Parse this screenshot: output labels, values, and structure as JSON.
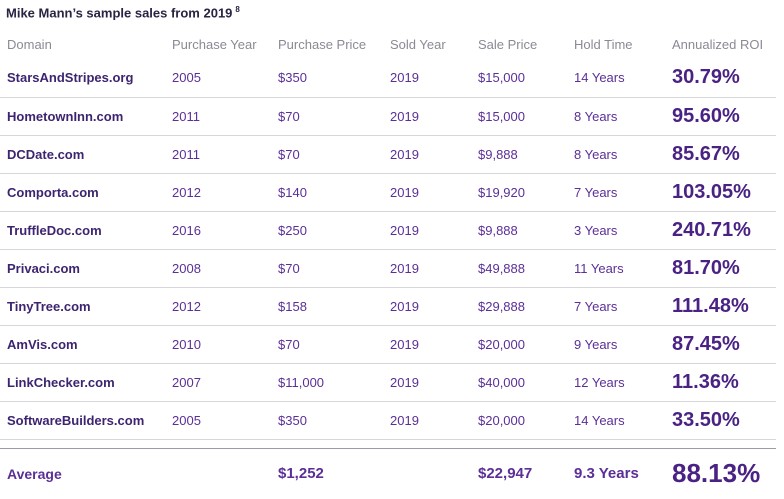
{
  "title": "Mike Mann’s sample sales from 2019",
  "footnote_marker": "8",
  "columns": [
    "Domain",
    "Purchase Year",
    "Purchase Price",
    "Sold Year",
    "Sale Price",
    "Hold Time",
    "Annualized ROI"
  ],
  "rows": [
    {
      "domain": "StarsAndStripes.org",
      "purchase_year": "2005",
      "purchase_price": "$350",
      "sold_year": "2019",
      "sale_price": "$15,000",
      "hold_time": "14 Years",
      "roi": "30.79%"
    },
    {
      "domain": "HometownInn.com",
      "purchase_year": "2011",
      "purchase_price": "$70",
      "sold_year": "2019",
      "sale_price": "$15,000",
      "hold_time": "8 Years",
      "roi": "95.60%"
    },
    {
      "domain": "DCDate.com",
      "purchase_year": "2011",
      "purchase_price": "$70",
      "sold_year": "2019",
      "sale_price": "$9,888",
      "hold_time": "8 Years",
      "roi": "85.67%"
    },
    {
      "domain": "Comporta.com",
      "purchase_year": "2012",
      "purchase_price": "$140",
      "sold_year": "2019",
      "sale_price": "$19,920",
      "hold_time": "7 Years",
      "roi": "103.05%"
    },
    {
      "domain": "TruffleDoc.com",
      "purchase_year": "2016",
      "purchase_price": "$250",
      "sold_year": "2019",
      "sale_price": "$9,888",
      "hold_time": "3 Years",
      "roi": "240.71%"
    },
    {
      "domain": "Privaci.com",
      "purchase_year": "2008",
      "purchase_price": "$70",
      "sold_year": "2019",
      "sale_price": "$49,888",
      "hold_time": "11 Years",
      "roi": "81.70%"
    },
    {
      "domain": "TinyTree.com",
      "purchase_year": "2012",
      "purchase_price": "$158",
      "sold_year": "2019",
      "sale_price": "$29,888",
      "hold_time": "7 Years",
      "roi": "111.48%"
    },
    {
      "domain": "AmVis.com",
      "purchase_year": "2010",
      "purchase_price": "$70",
      "sold_year": "2019",
      "sale_price": "$20,000",
      "hold_time": "9 Years",
      "roi": "87.45%"
    },
    {
      "domain": "LinkChecker.com",
      "purchase_year": "2007",
      "purchase_price": "$11,000",
      "sold_year": "2019",
      "sale_price": "$40,000",
      "hold_time": "12 Years",
      "roi": "11.36%"
    },
    {
      "domain": "SoftwareBuilders.com",
      "purchase_year": "2005",
      "purchase_price": "$350",
      "sold_year": "2019",
      "sale_price": "$20,000",
      "hold_time": "14 Years",
      "roi": "33.50%"
    }
  ],
  "average": {
    "label": "Average",
    "purchase_price": "$1,252",
    "sale_price": "$22,947",
    "hold_time": "9.3 Years",
    "roi": "88.13%"
  }
}
